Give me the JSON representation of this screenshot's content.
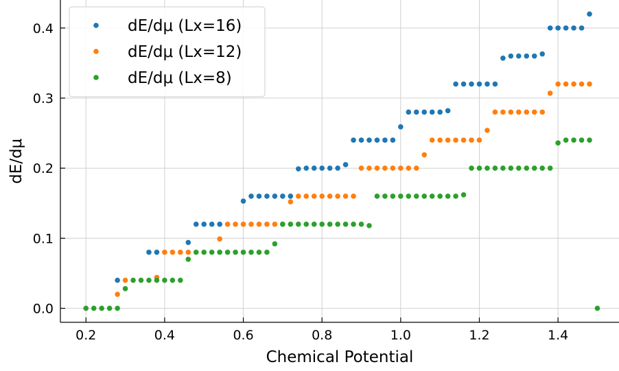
{
  "chart_data": {
    "type": "scatter",
    "title": "",
    "xlabel": "Chemical Potential",
    "ylabel": "dE/dμ",
    "xlim": [
      0.135,
      1.555
    ],
    "ylim": [
      -0.02,
      0.44
    ],
    "xticks": [
      0.2,
      0.4,
      0.6,
      0.8,
      1.0,
      1.2,
      1.4
    ],
    "xtick_labels": [
      "0.2",
      "0.4",
      "0.6",
      "0.8",
      "1.0",
      "1.2",
      "1.4"
    ],
    "yticks": [
      0.0,
      0.1,
      0.2,
      0.3,
      0.4
    ],
    "ytick_labels": [
      "0.0",
      "0.1",
      "0.2",
      "0.3",
      "0.4"
    ],
    "grid": true,
    "legend_position": "top-left",
    "series": [
      {
        "name": "dE/dμ (Lx=16)",
        "color": "#1f77b4",
        "points": [
          [
            0.28,
            0.04
          ],
          [
            0.36,
            0.08
          ],
          [
            0.38,
            0.08
          ],
          [
            0.46,
            0.094
          ],
          [
            0.48,
            0.12
          ],
          [
            0.5,
            0.12
          ],
          [
            0.52,
            0.12
          ],
          [
            0.54,
            0.12
          ],
          [
            0.6,
            0.153
          ],
          [
            0.62,
            0.16
          ],
          [
            0.64,
            0.16
          ],
          [
            0.66,
            0.16
          ],
          [
            0.68,
            0.16
          ],
          [
            0.7,
            0.16
          ],
          [
            0.72,
            0.16
          ],
          [
            0.74,
            0.199
          ],
          [
            0.76,
            0.2
          ],
          [
            0.78,
            0.2
          ],
          [
            0.8,
            0.2
          ],
          [
            0.82,
            0.2
          ],
          [
            0.84,
            0.2
          ],
          [
            0.86,
            0.205
          ],
          [
            0.88,
            0.24
          ],
          [
            0.9,
            0.24
          ],
          [
            0.92,
            0.24
          ],
          [
            0.94,
            0.24
          ],
          [
            0.96,
            0.24
          ],
          [
            0.98,
            0.24
          ],
          [
            1.0,
            0.259
          ],
          [
            1.02,
            0.28
          ],
          [
            1.04,
            0.28
          ],
          [
            1.06,
            0.28
          ],
          [
            1.08,
            0.28
          ],
          [
            1.1,
            0.28
          ],
          [
            1.12,
            0.282
          ],
          [
            1.14,
            0.32
          ],
          [
            1.16,
            0.32
          ],
          [
            1.18,
            0.32
          ],
          [
            1.2,
            0.32
          ],
          [
            1.22,
            0.32
          ],
          [
            1.24,
            0.32
          ],
          [
            1.26,
            0.357
          ],
          [
            1.28,
            0.36
          ],
          [
            1.3,
            0.36
          ],
          [
            1.32,
            0.36
          ],
          [
            1.34,
            0.36
          ],
          [
            1.36,
            0.363
          ],
          [
            1.38,
            0.4
          ],
          [
            1.4,
            0.4
          ],
          [
            1.42,
            0.4
          ],
          [
            1.44,
            0.4
          ],
          [
            1.46,
            0.4
          ],
          [
            1.48,
            0.42
          ]
        ]
      },
      {
        "name": "dE/dμ (Lx=12)",
        "color": "#ff7f0e",
        "points": [
          [
            0.28,
            0.02
          ],
          [
            0.3,
            0.04
          ],
          [
            0.38,
            0.044
          ],
          [
            0.4,
            0.08
          ],
          [
            0.42,
            0.08
          ],
          [
            0.44,
            0.08
          ],
          [
            0.46,
            0.08
          ],
          [
            0.54,
            0.099
          ],
          [
            0.56,
            0.12
          ],
          [
            0.58,
            0.12
          ],
          [
            0.6,
            0.12
          ],
          [
            0.62,
            0.12
          ],
          [
            0.64,
            0.12
          ],
          [
            0.66,
            0.12
          ],
          [
            0.68,
            0.12
          ],
          [
            0.7,
            0.12
          ],
          [
            0.72,
            0.152
          ],
          [
            0.74,
            0.16
          ],
          [
            0.76,
            0.16
          ],
          [
            0.78,
            0.16
          ],
          [
            0.8,
            0.16
          ],
          [
            0.82,
            0.16
          ],
          [
            0.84,
            0.16
          ],
          [
            0.86,
            0.16
          ],
          [
            0.88,
            0.16
          ],
          [
            0.9,
            0.2
          ],
          [
            0.92,
            0.2
          ],
          [
            0.94,
            0.2
          ],
          [
            0.96,
            0.2
          ],
          [
            0.98,
            0.2
          ],
          [
            1.0,
            0.2
          ],
          [
            1.02,
            0.2
          ],
          [
            1.04,
            0.2
          ],
          [
            1.06,
            0.219
          ],
          [
            1.08,
            0.24
          ],
          [
            1.1,
            0.24
          ],
          [
            1.12,
            0.24
          ],
          [
            1.14,
            0.24
          ],
          [
            1.16,
            0.24
          ],
          [
            1.18,
            0.24
          ],
          [
            1.2,
            0.24
          ],
          [
            1.22,
            0.254
          ],
          [
            1.24,
            0.28
          ],
          [
            1.26,
            0.28
          ],
          [
            1.28,
            0.28
          ],
          [
            1.3,
            0.28
          ],
          [
            1.32,
            0.28
          ],
          [
            1.34,
            0.28
          ],
          [
            1.36,
            0.28
          ],
          [
            1.38,
            0.307
          ],
          [
            1.4,
            0.32
          ],
          [
            1.42,
            0.32
          ],
          [
            1.44,
            0.32
          ],
          [
            1.46,
            0.32
          ],
          [
            1.48,
            0.32
          ]
        ]
      },
      {
        "name": "dE/dμ (Lx=8)",
        "color": "#2ca02c",
        "points": [
          [
            0.2,
            0.0
          ],
          [
            0.22,
            0.0
          ],
          [
            0.24,
            0.0
          ],
          [
            0.26,
            0.0
          ],
          [
            0.28,
            0.0
          ],
          [
            0.3,
            0.028
          ],
          [
            0.32,
            0.04
          ],
          [
            0.34,
            0.04
          ],
          [
            0.36,
            0.04
          ],
          [
            0.38,
            0.04
          ],
          [
            0.4,
            0.04
          ],
          [
            0.42,
            0.04
          ],
          [
            0.44,
            0.04
          ],
          [
            0.46,
            0.07
          ],
          [
            0.48,
            0.08
          ],
          [
            0.5,
            0.08
          ],
          [
            0.52,
            0.08
          ],
          [
            0.54,
            0.08
          ],
          [
            0.56,
            0.08
          ],
          [
            0.58,
            0.08
          ],
          [
            0.6,
            0.08
          ],
          [
            0.62,
            0.08
          ],
          [
            0.64,
            0.08
          ],
          [
            0.66,
            0.08
          ],
          [
            0.68,
            0.092
          ],
          [
            0.7,
            0.12
          ],
          [
            0.72,
            0.12
          ],
          [
            0.74,
            0.12
          ],
          [
            0.76,
            0.12
          ],
          [
            0.78,
            0.12
          ],
          [
            0.8,
            0.12
          ],
          [
            0.82,
            0.12
          ],
          [
            0.84,
            0.12
          ],
          [
            0.86,
            0.12
          ],
          [
            0.88,
            0.12
          ],
          [
            0.9,
            0.12
          ],
          [
            0.92,
            0.118
          ],
          [
            0.94,
            0.16
          ],
          [
            0.96,
            0.16
          ],
          [
            0.98,
            0.16
          ],
          [
            1.0,
            0.16
          ],
          [
            1.02,
            0.16
          ],
          [
            1.04,
            0.16
          ],
          [
            1.06,
            0.16
          ],
          [
            1.08,
            0.16
          ],
          [
            1.1,
            0.16
          ],
          [
            1.12,
            0.16
          ],
          [
            1.14,
            0.16
          ],
          [
            1.16,
            0.162
          ],
          [
            1.18,
            0.2
          ],
          [
            1.2,
            0.2
          ],
          [
            1.22,
            0.2
          ],
          [
            1.24,
            0.2
          ],
          [
            1.26,
            0.2
          ],
          [
            1.28,
            0.2
          ],
          [
            1.3,
            0.2
          ],
          [
            1.32,
            0.2
          ],
          [
            1.34,
            0.2
          ],
          [
            1.36,
            0.2
          ],
          [
            1.38,
            0.2
          ],
          [
            1.4,
            0.236
          ],
          [
            1.42,
            0.24
          ],
          [
            1.44,
            0.24
          ],
          [
            1.46,
            0.24
          ],
          [
            1.48,
            0.24
          ],
          [
            1.5,
            0.0
          ]
        ]
      }
    ]
  }
}
